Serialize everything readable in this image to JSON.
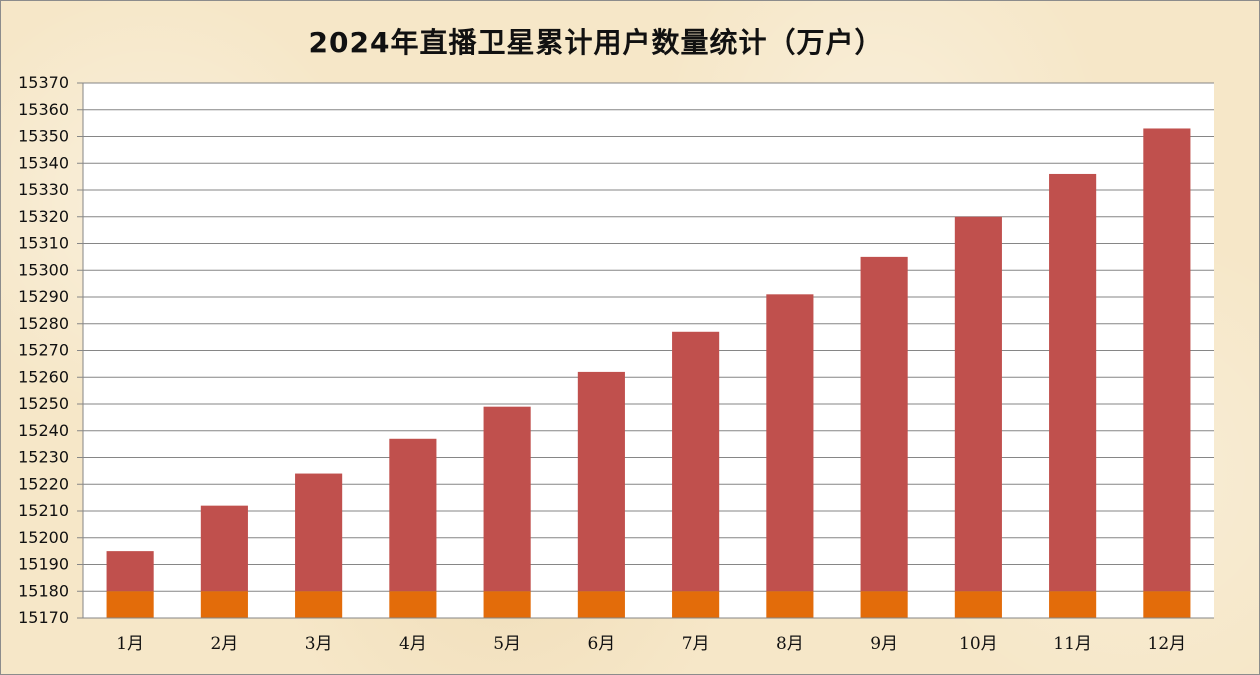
{
  "chart_data": {
    "type": "bar",
    "title": "2024年直播卫星累计用户数量统计（万户）",
    "xlabel": "",
    "ylabel": "",
    "categories": [
      "1月",
      "2月",
      "3月",
      "4月",
      "5月",
      "6月",
      "7月",
      "8月",
      "9月",
      "10月",
      "11月",
      "12月"
    ],
    "series": [
      {
        "values": [
          15195,
          15212,
          15224,
          15237,
          15249,
          15262,
          15277,
          15291,
          15305,
          15320,
          15336,
          15353
        ],
        "color": "#c0504d"
      }
    ],
    "base_band": {
      "from": 15170,
      "to": 15180,
      "color": "#e36c0a"
    },
    "ylim": [
      15170,
      15370
    ],
    "ytick_step": 10,
    "grid": true,
    "plot_background": "#ffffff",
    "background_color": "#f6e7c8"
  }
}
